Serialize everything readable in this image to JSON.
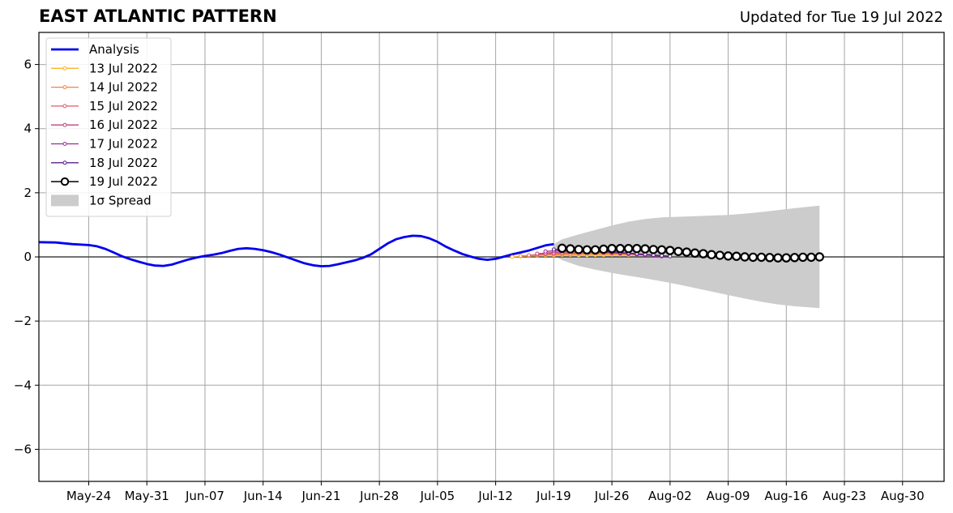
{
  "header": {
    "title": "EAST ATLANTIC PATTERN",
    "updated": "Updated for Tue 19 Jul 2022"
  },
  "chart_data": {
    "type": "line",
    "title": "EAST ATLANTIC PATTERN",
    "subtitle": "Updated for Tue 19 Jul 2022",
    "xlabel": "",
    "ylabel": "",
    "grid": true,
    "legend_position": "top-left",
    "xlim": [
      "2022-05-18",
      "2022-09-04"
    ],
    "ylim": [
      -7,
      7
    ],
    "x_ticks": [
      {
        "date": "2022-05-24",
        "label": "May-24"
      },
      {
        "date": "2022-05-31",
        "label": "May-31"
      },
      {
        "date": "2022-06-07",
        "label": "Jun-07"
      },
      {
        "date": "2022-06-14",
        "label": "Jun-14"
      },
      {
        "date": "2022-06-21",
        "label": "Jun-21"
      },
      {
        "date": "2022-06-28",
        "label": "Jun-28"
      },
      {
        "date": "2022-07-05",
        "label": "Jul-05"
      },
      {
        "date": "2022-07-12",
        "label": "Jul-12"
      },
      {
        "date": "2022-07-19",
        "label": "Jul-19"
      },
      {
        "date": "2022-07-26",
        "label": "Jul-26"
      },
      {
        "date": "2022-08-02",
        "label": "Aug-02"
      },
      {
        "date": "2022-08-09",
        "label": "Aug-09"
      },
      {
        "date": "2022-08-16",
        "label": "Aug-16"
      },
      {
        "date": "2022-08-23",
        "label": "Aug-23"
      },
      {
        "date": "2022-08-30",
        "label": "Aug-30"
      }
    ],
    "y_ticks": [
      {
        "value": 6,
        "label": "6"
      },
      {
        "value": 4,
        "label": "4"
      },
      {
        "value": 2,
        "label": "2"
      },
      {
        "value": 0,
        "label": "0"
      },
      {
        "value": -2,
        "label": "−2"
      },
      {
        "value": -4,
        "label": "−4"
      },
      {
        "value": -6,
        "label": "−6"
      }
    ],
    "series": [
      {
        "name": "Analysis",
        "color": "#0000ee",
        "style": "line",
        "points": [
          [
            "2022-05-18",
            0.46
          ],
          [
            "2022-05-20",
            0.45
          ],
          [
            "2022-05-22",
            0.4
          ],
          [
            "2022-05-24",
            0.37
          ],
          [
            "2022-05-25",
            0.33
          ],
          [
            "2022-05-26",
            0.25
          ],
          [
            "2022-05-27",
            0.14
          ],
          [
            "2022-05-28",
            0.02
          ],
          [
            "2022-05-29",
            -0.07
          ],
          [
            "2022-05-30",
            -0.15
          ],
          [
            "2022-05-31",
            -0.22
          ],
          [
            "2022-06-01",
            -0.27
          ],
          [
            "2022-06-02",
            -0.28
          ],
          [
            "2022-06-03",
            -0.24
          ],
          [
            "2022-06-04",
            -0.16
          ],
          [
            "2022-06-05",
            -0.08
          ],
          [
            "2022-06-06",
            -0.02
          ],
          [
            "2022-06-07",
            0.03
          ],
          [
            "2022-06-08",
            0.07
          ],
          [
            "2022-06-09",
            0.12
          ],
          [
            "2022-06-10",
            0.19
          ],
          [
            "2022-06-11",
            0.25
          ],
          [
            "2022-06-12",
            0.27
          ],
          [
            "2022-06-13",
            0.25
          ],
          [
            "2022-06-14",
            0.21
          ],
          [
            "2022-06-15",
            0.15
          ],
          [
            "2022-06-16",
            0.07
          ],
          [
            "2022-06-17",
            -0.02
          ],
          [
            "2022-06-18",
            -0.11
          ],
          [
            "2022-06-19",
            -0.2
          ],
          [
            "2022-06-20",
            -0.26
          ],
          [
            "2022-06-21",
            -0.29
          ],
          [
            "2022-06-22",
            -0.28
          ],
          [
            "2022-06-23",
            -0.23
          ],
          [
            "2022-06-24",
            -0.17
          ],
          [
            "2022-06-25",
            -0.11
          ],
          [
            "2022-06-26",
            -0.03
          ],
          [
            "2022-06-27",
            0.08
          ],
          [
            "2022-06-28",
            0.25
          ],
          [
            "2022-06-29",
            0.42
          ],
          [
            "2022-06-30",
            0.55
          ],
          [
            "2022-07-01",
            0.62
          ],
          [
            "2022-07-02",
            0.66
          ],
          [
            "2022-07-03",
            0.65
          ],
          [
            "2022-07-04",
            0.58
          ],
          [
            "2022-07-05",
            0.47
          ],
          [
            "2022-07-06",
            0.32
          ],
          [
            "2022-07-07",
            0.2
          ],
          [
            "2022-07-08",
            0.09
          ],
          [
            "2022-07-09",
            0.01
          ],
          [
            "2022-07-10",
            -0.06
          ],
          [
            "2022-07-11",
            -0.09
          ],
          [
            "2022-07-12",
            -0.06
          ],
          [
            "2022-07-13",
            0.01
          ],
          [
            "2022-07-14",
            0.08
          ],
          [
            "2022-07-15",
            0.14
          ],
          [
            "2022-07-16",
            0.2
          ],
          [
            "2022-07-17",
            0.28
          ],
          [
            "2022-07-18",
            0.36
          ],
          [
            "2022-07-19",
            0.4
          ]
        ]
      },
      {
        "name": "13 Jul 2022",
        "color": "#fcb32b",
        "style": "small-markers",
        "points": [
          [
            "2022-07-14",
            0.0
          ],
          [
            "2022-07-15",
            0.02
          ],
          [
            "2022-07-16",
            0.03
          ],
          [
            "2022-07-17",
            0.04
          ],
          [
            "2022-07-18",
            0.05
          ],
          [
            "2022-07-19",
            0.05
          ],
          [
            "2022-07-20",
            0.06
          ],
          [
            "2022-07-21",
            0.06
          ],
          [
            "2022-07-22",
            0.05
          ],
          [
            "2022-07-23",
            0.05
          ],
          [
            "2022-07-24",
            0.06
          ],
          [
            "2022-07-25",
            0.06
          ],
          [
            "2022-07-26",
            0.07
          ],
          [
            "2022-07-27",
            0.07
          ],
          [
            "2022-07-28",
            0.06
          ]
        ]
      },
      {
        "name": "14 Jul 2022",
        "color": "#f4833e",
        "style": "small-markers",
        "points": [
          [
            "2022-07-15",
            0.03
          ],
          [
            "2022-07-16",
            0.04
          ],
          [
            "2022-07-17",
            0.06
          ],
          [
            "2022-07-18",
            0.07
          ],
          [
            "2022-07-19",
            0.08
          ],
          [
            "2022-07-20",
            0.08
          ],
          [
            "2022-07-21",
            0.08
          ],
          [
            "2022-07-22",
            0.09
          ],
          [
            "2022-07-23",
            0.09
          ],
          [
            "2022-07-24",
            0.1
          ],
          [
            "2022-07-25",
            0.1
          ],
          [
            "2022-07-26",
            0.1
          ],
          [
            "2022-07-27",
            0.09
          ],
          [
            "2022-07-28",
            0.08
          ],
          [
            "2022-07-29",
            0.07
          ]
        ]
      },
      {
        "name": "15 Jul 2022",
        "color": "#e0596a",
        "style": "small-markers",
        "points": [
          [
            "2022-07-16",
            0.05
          ],
          [
            "2022-07-17",
            0.07
          ],
          [
            "2022-07-18",
            0.09
          ],
          [
            "2022-07-19",
            0.1
          ],
          [
            "2022-07-20",
            0.11
          ],
          [
            "2022-07-21",
            0.12
          ],
          [
            "2022-07-22",
            0.12
          ],
          [
            "2022-07-23",
            0.13
          ],
          [
            "2022-07-24",
            0.13
          ],
          [
            "2022-07-25",
            0.13
          ],
          [
            "2022-07-26",
            0.12
          ],
          [
            "2022-07-27",
            0.11
          ],
          [
            "2022-07-28",
            0.1
          ],
          [
            "2022-07-29",
            0.08
          ],
          [
            "2022-07-30",
            0.06
          ]
        ]
      },
      {
        "name": "16 Jul 2022",
        "color": "#c1407e",
        "style": "small-markers",
        "points": [
          [
            "2022-07-17",
            0.1
          ],
          [
            "2022-07-18",
            0.12
          ],
          [
            "2022-07-19",
            0.14
          ],
          [
            "2022-07-20",
            0.15
          ],
          [
            "2022-07-21",
            0.16
          ],
          [
            "2022-07-22",
            0.16
          ],
          [
            "2022-07-23",
            0.16
          ],
          [
            "2022-07-24",
            0.15
          ],
          [
            "2022-07-25",
            0.14
          ],
          [
            "2022-07-26",
            0.13
          ],
          [
            "2022-07-27",
            0.12
          ],
          [
            "2022-07-28",
            0.1
          ],
          [
            "2022-07-29",
            0.08
          ],
          [
            "2022-07-30",
            0.06
          ],
          [
            "2022-07-31",
            0.04
          ]
        ]
      },
      {
        "name": "17 Jul 2022",
        "color": "#9b2a96",
        "style": "small-markers",
        "points": [
          [
            "2022-07-18",
            0.17
          ],
          [
            "2022-07-19",
            0.19
          ],
          [
            "2022-07-20",
            0.2
          ],
          [
            "2022-07-21",
            0.2
          ],
          [
            "2022-07-22",
            0.19
          ],
          [
            "2022-07-23",
            0.18
          ],
          [
            "2022-07-24",
            0.17
          ],
          [
            "2022-07-25",
            0.16
          ],
          [
            "2022-07-26",
            0.14
          ],
          [
            "2022-07-27",
            0.12
          ],
          [
            "2022-07-28",
            0.1
          ],
          [
            "2022-07-29",
            0.08
          ],
          [
            "2022-07-30",
            0.06
          ],
          [
            "2022-07-31",
            0.04
          ],
          [
            "2022-08-01",
            0.02
          ]
        ]
      },
      {
        "name": "18 Jul 2022",
        "color": "#5b1d8c",
        "style": "small-markers",
        "points": [
          [
            "2022-07-19",
            0.23
          ],
          [
            "2022-07-20",
            0.24
          ],
          [
            "2022-07-21",
            0.23
          ],
          [
            "2022-07-22",
            0.22
          ],
          [
            "2022-07-23",
            0.21
          ],
          [
            "2022-07-24",
            0.2
          ],
          [
            "2022-07-25",
            0.18
          ],
          [
            "2022-07-26",
            0.16
          ],
          [
            "2022-07-27",
            0.14
          ],
          [
            "2022-07-28",
            0.12
          ],
          [
            "2022-07-29",
            0.1
          ],
          [
            "2022-07-30",
            0.08
          ],
          [
            "2022-07-31",
            0.06
          ],
          [
            "2022-08-01",
            0.04
          ],
          [
            "2022-08-02",
            0.02
          ]
        ]
      },
      {
        "name": "19 Jul 2022",
        "color": "#000000",
        "style": "large-open-markers",
        "points": [
          [
            "2022-07-20",
            0.27
          ],
          [
            "2022-07-21",
            0.25
          ],
          [
            "2022-07-22",
            0.23
          ],
          [
            "2022-07-23",
            0.22
          ],
          [
            "2022-07-24",
            0.22
          ],
          [
            "2022-07-25",
            0.24
          ],
          [
            "2022-07-26",
            0.26
          ],
          [
            "2022-07-27",
            0.26
          ],
          [
            "2022-07-28",
            0.26
          ],
          [
            "2022-07-29",
            0.26
          ],
          [
            "2022-07-30",
            0.25
          ],
          [
            "2022-07-31",
            0.23
          ],
          [
            "2022-08-01",
            0.22
          ],
          [
            "2022-08-02",
            0.2
          ],
          [
            "2022-08-03",
            0.17
          ],
          [
            "2022-08-04",
            0.15
          ],
          [
            "2022-08-05",
            0.12
          ],
          [
            "2022-08-06",
            0.1
          ],
          [
            "2022-08-07",
            0.07
          ],
          [
            "2022-08-08",
            0.05
          ],
          [
            "2022-08-09",
            0.03
          ],
          [
            "2022-08-10",
            0.02
          ],
          [
            "2022-08-11",
            0.0
          ],
          [
            "2022-08-12",
            -0.01
          ],
          [
            "2022-08-13",
            -0.01
          ],
          [
            "2022-08-14",
            -0.02
          ],
          [
            "2022-08-15",
            -0.03
          ],
          [
            "2022-08-16",
            -0.03
          ],
          [
            "2022-08-17",
            -0.02
          ],
          [
            "2022-08-18",
            -0.01
          ],
          [
            "2022-08-19",
            -0.01
          ],
          [
            "2022-08-20",
            0.0
          ]
        ]
      }
    ],
    "spread": {
      "name": "1σ Spread",
      "color": "#cccccc",
      "points": [
        [
          "2022-07-19",
          0.4,
          0.05
        ],
        [
          "2022-07-20",
          0.55,
          -0.1
        ],
        [
          "2022-07-22",
          0.7,
          -0.28
        ],
        [
          "2022-07-24",
          0.84,
          -0.4
        ],
        [
          "2022-07-26",
          0.98,
          -0.5
        ],
        [
          "2022-07-28",
          1.1,
          -0.59
        ],
        [
          "2022-07-30",
          1.18,
          -0.67
        ],
        [
          "2022-08-01",
          1.23,
          -0.76
        ],
        [
          "2022-08-03",
          1.25,
          -0.86
        ],
        [
          "2022-08-05",
          1.27,
          -0.97
        ],
        [
          "2022-08-07",
          1.29,
          -1.08
        ],
        [
          "2022-08-09",
          1.31,
          -1.19
        ],
        [
          "2022-08-11",
          1.35,
          -1.3
        ],
        [
          "2022-08-13",
          1.4,
          -1.4
        ],
        [
          "2022-08-15",
          1.46,
          -1.48
        ],
        [
          "2022-08-17",
          1.52,
          -1.54
        ],
        [
          "2022-08-20",
          1.6,
          -1.6
        ]
      ]
    },
    "legend": [
      {
        "label": "Analysis",
        "color": "#0000ee",
        "style": "thick-line"
      },
      {
        "label": "13 Jul 2022",
        "color": "#fcb32b",
        "style": "small-markers"
      },
      {
        "label": "14 Jul 2022",
        "color": "#f4833e",
        "style": "small-markers"
      },
      {
        "label": "15 Jul 2022",
        "color": "#e0596a",
        "style": "small-markers"
      },
      {
        "label": "16 Jul 2022",
        "color": "#c1407e",
        "style": "small-markers"
      },
      {
        "label": "17 Jul 2022",
        "color": "#9b2a96",
        "style": "small-markers"
      },
      {
        "label": "18 Jul 2022",
        "color": "#5b1d8c",
        "style": "small-markers"
      },
      {
        "label": "19 Jul 2022",
        "color": "#000000",
        "style": "large-open-markers"
      },
      {
        "label": "1σ Spread",
        "color": "#cccccc",
        "style": "patch"
      }
    ]
  }
}
